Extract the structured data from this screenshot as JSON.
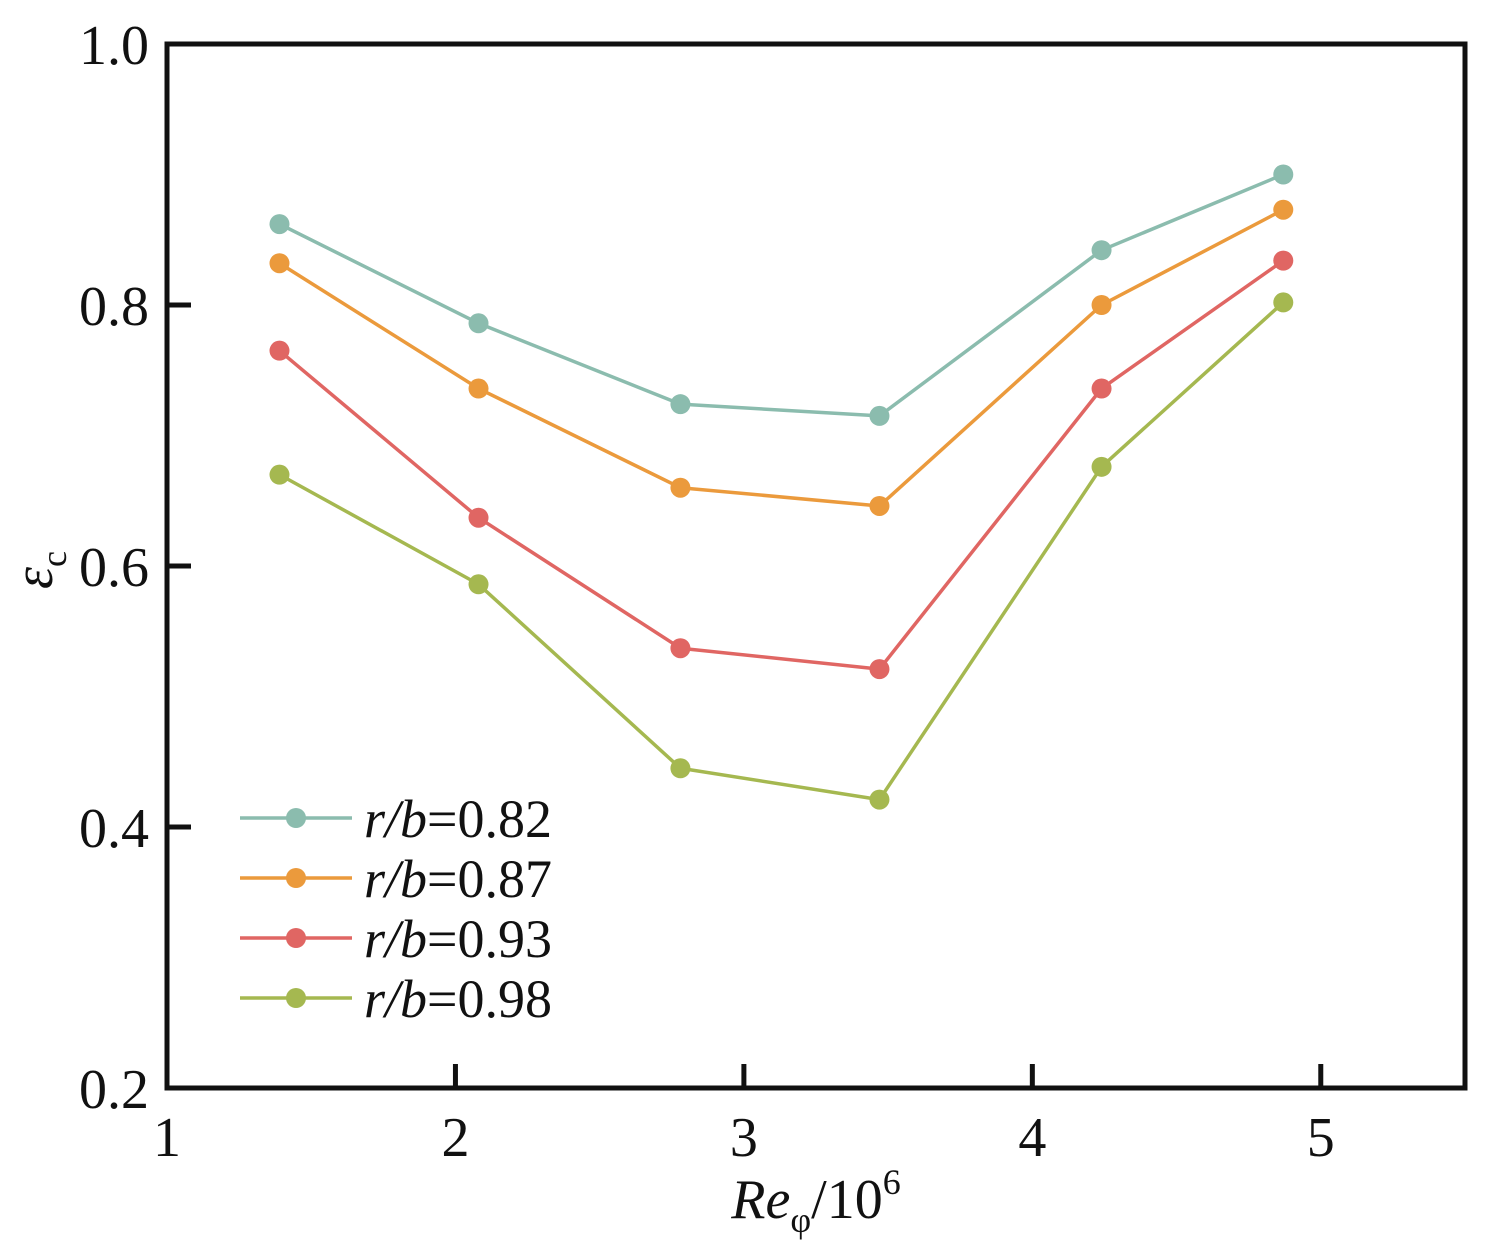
{
  "chart_data": {
    "type": "line",
    "title": "",
    "xlabel": {
      "main": "Re",
      "subscript": "φ",
      "suffix": "/10",
      "superscript": "6"
    },
    "ylabel": {
      "main": "ε",
      "subscript": "c"
    },
    "xlim": [
      1,
      5.5
    ],
    "ylim": [
      0.2,
      1.0
    ],
    "xticks": [
      1,
      2,
      3,
      4,
      5
    ],
    "xtick_labels": [
      "1",
      "2",
      "3",
      "4",
      "5"
    ],
    "yticks": [
      0.2,
      0.4,
      0.6,
      0.8,
      1.0
    ],
    "ytick_labels": [
      "0.2",
      "0.4",
      "0.6",
      "0.8",
      "1.0"
    ],
    "x": [
      1.39,
      2.08,
      2.78,
      3.47,
      4.24,
      4.87
    ],
    "series": [
      {
        "name": "r/b=0.82",
        "label_var": "r/b",
        "label_value": "=0.82",
        "color": "#8bbcae",
        "values": [
          0.862,
          0.786,
          0.724,
          0.715,
          0.842,
          0.9
        ]
      },
      {
        "name": "r/b=0.87",
        "label_var": "r/b",
        "label_value": "=0.87",
        "color": "#eb9a3c",
        "values": [
          0.832,
          0.736,
          0.66,
          0.646,
          0.8,
          0.873
        ]
      },
      {
        "name": "r/b=0.93",
        "label_var": "r/b",
        "label_value": "=0.93",
        "color": "#e06663",
        "values": [
          0.765,
          0.637,
          0.537,
          0.521,
          0.736,
          0.834
        ]
      },
      {
        "name": "r/b=0.98",
        "label_var": "r/b",
        "label_value": "=0.98",
        "color": "#a5b850",
        "values": [
          0.67,
          0.586,
          0.445,
          0.421,
          0.676,
          0.802
        ]
      }
    ],
    "legend_position": "bottom-left",
    "grid": false
  }
}
